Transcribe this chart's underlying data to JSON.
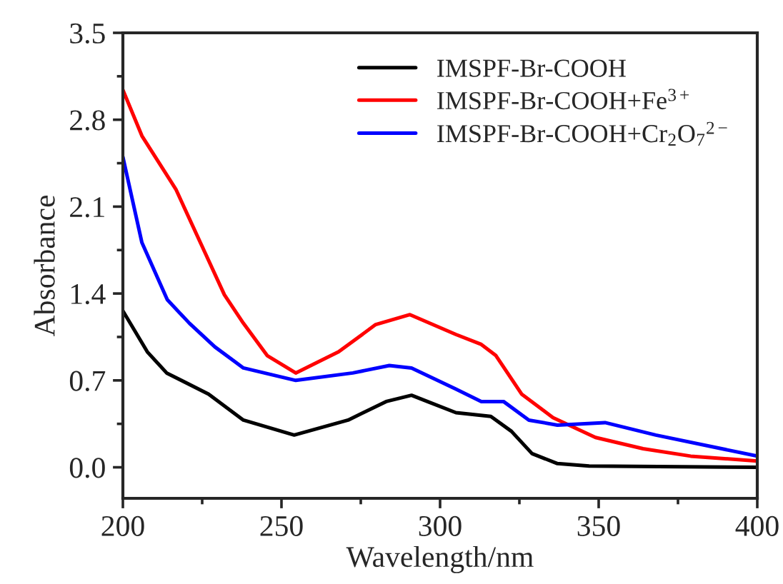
{
  "chart_data": {
    "type": "line",
    "xlabel": "Wavelength/nm",
    "ylabel": "Absorbance",
    "xlim": [
      200,
      400
    ],
    "xticks": [
      200,
      250,
      300,
      350,
      400
    ],
    "ylim": [
      -0.25,
      3.5
    ],
    "yticks": [
      {
        "value": 0,
        "label": "0.0"
      },
      0.7,
      1.4,
      2.1,
      2.8,
      3.5
    ],
    "grid": false,
    "legend": "top right",
    "marker": "none",
    "line_style": "solid",
    "series": [
      {
        "name": "IMSPF-Br-COOH",
        "color": "#000000",
        "x": [
          200,
          207.7,
          213.8,
          227,
          238,
          254,
          271,
          283,
          291,
          296,
          305,
          316,
          322.5,
          329,
          337,
          347,
          400
        ],
        "values": [
          1.26,
          0.93,
          0.76,
          0.59,
          0.38,
          0.26,
          0.38,
          0.53,
          0.58,
          0.53,
          0.44,
          0.41,
          0.29,
          0.11,
          0.03,
          0.01,
          0.0
        ]
      },
      {
        "name": "IMSPF-Br-COOH+Fe$^{3+}$",
        "color": "#ff0000",
        "x": [
          200,
          206,
          216.7,
          225.7,
          232,
          238,
          245.5,
          254.5,
          268,
          279.7,
          290.5,
          305,
          313,
          317.6,
          325.7,
          335.6,
          349,
          364,
          379,
          400
        ],
        "values": [
          3.04,
          2.67,
          2.24,
          1.74,
          1.39,
          1.16,
          0.9,
          0.76,
          0.93,
          1.15,
          1.23,
          1.07,
          0.99,
          0.9,
          0.59,
          0.4,
          0.24,
          0.15,
          0.09,
          0.05
        ]
      },
      {
        "name": "IMSPF-Br-COOH+Cr$_{2}$O$_{7}$$^{2−}$",
        "color": "#0000ff",
        "x": [
          200,
          206,
          214,
          221,
          229,
          238,
          254.5,
          272.5,
          284,
          291,
          305,
          313,
          320,
          328,
          337,
          352,
          368,
          400
        ],
        "values": [
          2.5,
          1.81,
          1.35,
          1.16,
          0.97,
          0.8,
          0.7,
          0.76,
          0.82,
          0.8,
          0.63,
          0.53,
          0.53,
          0.38,
          0.34,
          0.36,
          0.26,
          0.09
        ]
      }
    ]
  }
}
